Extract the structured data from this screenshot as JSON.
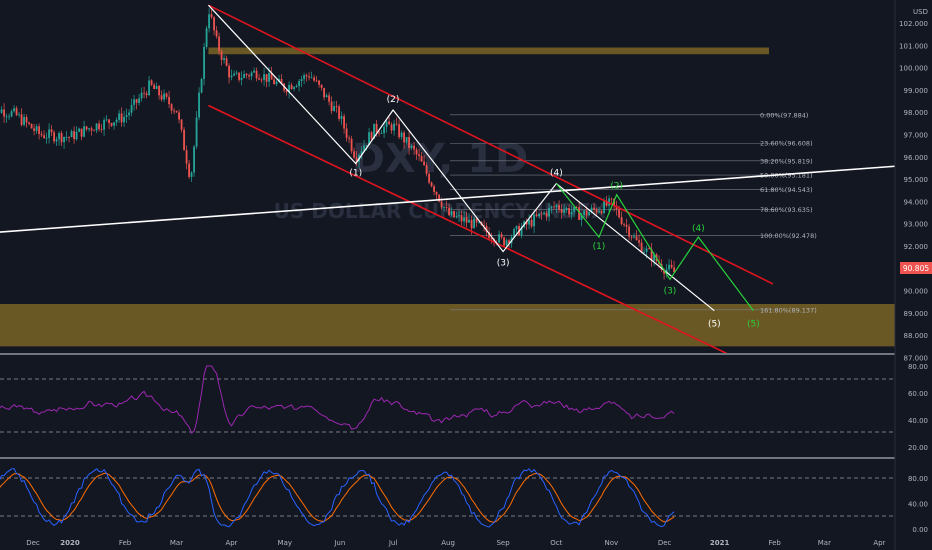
{
  "watermark": {
    "symbol": "DXY, 1D",
    "name": "US DOLLAR CURRENCY INDEX"
  },
  "price_axis": {
    "currency": "USD",
    "ticks": [
      102,
      101,
      100,
      99,
      98,
      97,
      96,
      95,
      94,
      93,
      92,
      91,
      90,
      89,
      88,
      87
    ],
    "last_price": "90.805"
  },
  "time_axis": {
    "labels": [
      "Dec",
      "2020",
      "Feb",
      "Mar",
      "Apr",
      "May",
      "Jun",
      "Jul",
      "Aug",
      "Sep",
      "Oct",
      "Nov",
      "Dec",
      "2021",
      "Feb",
      "Mar",
      "Apr"
    ]
  },
  "colors": {
    "background": "#131722",
    "up": "#26a69a",
    "down": "#ef5350",
    "channel": "#e0141e",
    "zone": "#7a6424",
    "wave_white": "#ffffff",
    "wave_green": "#29d13a",
    "rsi": "#9c27b0",
    "stoch_k": "#2962ff",
    "stoch_d": "#ff6d00"
  },
  "fib_levels": [
    {
      "label": "0.00%(97.884)",
      "value": 97.884
    },
    {
      "label": "23.60%(96.608)",
      "value": 96.608
    },
    {
      "label": "38.20%(95.819)",
      "value": 95.819
    },
    {
      "label": "50.00%(95.181)",
      "value": 95.181
    },
    {
      "label": "61.80%(94.543)",
      "value": 94.543
    },
    {
      "label": "78.60%(93.635)",
      "value": 93.635
    },
    {
      "label": "100.00%(92.478)",
      "value": 92.478
    },
    {
      "label": "161.80%(89.137)",
      "value": 89.137
    }
  ],
  "wave_labels": {
    "white": [
      "(1)",
      "(2)",
      "(3)",
      "(4)",
      "(5)"
    ],
    "green": [
      "(1)",
      "(2)",
      "(3)",
      "(4)",
      "(5)"
    ]
  },
  "rsi_panel": {
    "ticks": [
      "80.00",
      "60.00",
      "40.00",
      "20.00"
    ]
  },
  "stoch_panel": {
    "ticks": [
      "80.00",
      "40.00",
      "0.00"
    ]
  },
  "chart_data": {
    "type": "candlestick",
    "x": [
      "2019-11-15",
      "2019-12-01",
      "2019-12-15",
      "2020-01-01",
      "2020-01-15",
      "2020-02-01",
      "2020-02-15",
      "2020-03-01",
      "2020-03-09",
      "2020-03-19",
      "2020-03-24",
      "2020-04-01",
      "2020-04-15",
      "2020-05-01",
      "2020-05-15",
      "2020-06-01",
      "2020-06-10",
      "2020-06-20",
      "2020-07-01",
      "2020-07-15",
      "2020-08-01",
      "2020-08-15",
      "2020-09-01",
      "2020-09-15",
      "2020-10-01",
      "2020-10-15",
      "2020-11-01",
      "2020-11-15",
      "2020-12-01",
      "2020-12-07"
    ],
    "close": [
      98.3,
      97.9,
      97.0,
      96.9,
      97.4,
      97.8,
      99.2,
      98.1,
      95.0,
      102.7,
      101.0,
      99.5,
      99.8,
      99.1,
      99.7,
      97.8,
      96.0,
      97.2,
      97.4,
      96.0,
      93.4,
      93.0,
      92.2,
      93.0,
      93.8,
      93.4,
      93.9,
      92.2,
      91.0,
      90.8
    ],
    "ylim": [
      87,
      102.5
    ],
    "channel_lines": [
      {
        "from": [
          "2020-03-19",
          102.8
        ],
        "to": [
          "2021-01-31",
          90.3
        ]
      },
      {
        "from": [
          "2020-03-19",
          98.3
        ],
        "to": [
          "2021-01-15",
          86.8
        ]
      }
    ],
    "trendline": {
      "from": [
        "2019-11-01",
        92.5
      ],
      "to": [
        "2021-05-01",
        95.7
      ]
    },
    "zones": [
      {
        "from_value": 100.6,
        "to_value": 100.9,
        "start": "2020-03-19"
      },
      {
        "from_value": 87.5,
        "to_value": 89.4,
        "start": "2019-11-01"
      }
    ],
    "wave_white": [
      [
        "2020-03-19",
        102.8
      ],
      [
        "2020-06-10",
        95.7
      ],
      [
        "2020-07-01",
        98.1
      ],
      [
        "2020-09-01",
        91.75
      ],
      [
        "2020-10-01",
        94.8
      ],
      [
        "2020-12-29",
        89.1
      ]
    ],
    "wave_green": [
      [
        "2020-10-01",
        94.8
      ],
      [
        "2020-10-25",
        92.4
      ],
      [
        "2020-11-04",
        94.3
      ],
      [
        "2020-12-04",
        90.5
      ],
      [
        "2020-12-20",
        92.4
      ],
      [
        "2021-01-20",
        89.1
      ]
    ]
  }
}
